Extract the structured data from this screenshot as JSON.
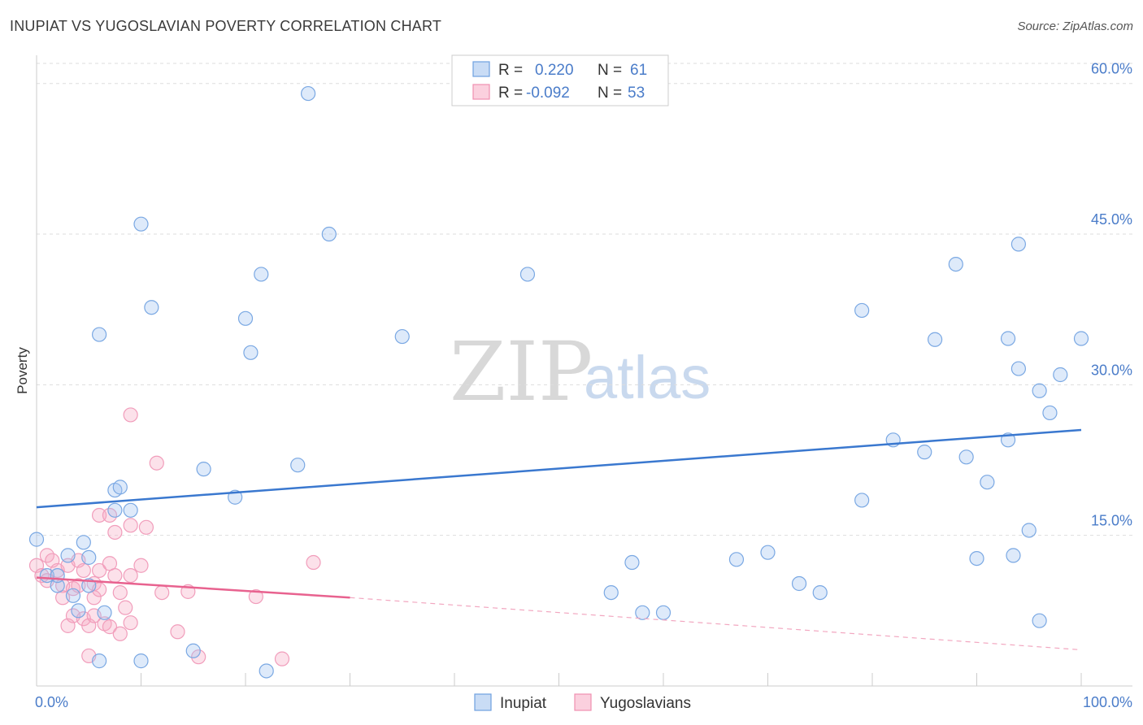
{
  "header": {
    "title": "INUPIAT VS YUGOSLAVIAN POVERTY CORRELATION CHART",
    "source": "Source: ZipAtlas.com"
  },
  "watermark": {
    "zip": "ZIP",
    "atlas": "atlas"
  },
  "legend": {
    "rows": [
      {
        "r_label": "R =",
        "r_value": "0.220",
        "n_label": "N =",
        "n_value": "61",
        "color": "#6fa0e0"
      },
      {
        "r_label": "R =",
        "r_value": "-0.092",
        "n_label": "N =",
        "n_value": "53",
        "color": "#f08fb0"
      }
    ]
  },
  "bottom_legend": {
    "series1": "Inupiat",
    "series2": "Yugoslavians"
  },
  "chart_data": {
    "type": "scatter",
    "title": "INUPIAT VS YUGOSLAVIAN POVERTY CORRELATION CHART",
    "xlabel": "",
    "ylabel": "Poverty",
    "xlim": [
      0,
      100
    ],
    "ylim": [
      0,
      62
    ],
    "x_tick_labels": [
      "0.0%",
      "100.0%"
    ],
    "y_ticks": [
      15,
      30,
      45,
      60
    ],
    "y_tick_labels": [
      "15.0%",
      "30.0%",
      "45.0%",
      "60.0%"
    ],
    "colors": {
      "inupiat": "#3a78cf",
      "yugoslavians": "#e8628f"
    },
    "series": [
      {
        "name": "Inupiat",
        "trend": {
          "x0": 0,
          "y0": 17.8,
          "x1": 100,
          "y1": 25.5
        },
        "points": [
          [
            0,
            14.6
          ],
          [
            1,
            11
          ],
          [
            2,
            10
          ],
          [
            2,
            11
          ],
          [
            3,
            13
          ],
          [
            3.5,
            9
          ],
          [
            4,
            7.5
          ],
          [
            4.5,
            14.3
          ],
          [
            5,
            12.8
          ],
          [
            5,
            10
          ],
          [
            6,
            35
          ],
          [
            6,
            2.5
          ],
          [
            6.5,
            7.3
          ],
          [
            7.5,
            17.5
          ],
          [
            7.5,
            19.5
          ],
          [
            8,
            19.8
          ],
          [
            9,
            17.5
          ],
          [
            10,
            46
          ],
          [
            10,
            2.5
          ],
          [
            11,
            37.7
          ],
          [
            15,
            3.5
          ],
          [
            16,
            21.6
          ],
          [
            19,
            18.8
          ],
          [
            20,
            36.6
          ],
          [
            20.5,
            33.2
          ],
          [
            21.5,
            41
          ],
          [
            22,
            1.5
          ],
          [
            25,
            22
          ],
          [
            26,
            59
          ],
          [
            28,
            45
          ],
          [
            35,
            34.8
          ],
          [
            47,
            41
          ],
          [
            55,
            9.3
          ],
          [
            57,
            12.3
          ],
          [
            58,
            7.3
          ],
          [
            60,
            7.3
          ],
          [
            67,
            12.6
          ],
          [
            70,
            13.3
          ],
          [
            73,
            10.2
          ],
          [
            75,
            9.3
          ],
          [
            79,
            37.4
          ],
          [
            79,
            18.5
          ],
          [
            82,
            24.5
          ],
          [
            85,
            23.3
          ],
          [
            86,
            34.5
          ],
          [
            88,
            42
          ],
          [
            89,
            22.8
          ],
          [
            90,
            12.7
          ],
          [
            91,
            20.3
          ],
          [
            93,
            24.5
          ],
          [
            93,
            34.6
          ],
          [
            93.5,
            13
          ],
          [
            94,
            44
          ],
          [
            94,
            31.6
          ],
          [
            95,
            15.5
          ],
          [
            96,
            29.4
          ],
          [
            96,
            6.5
          ],
          [
            97,
            27.2
          ],
          [
            98,
            31
          ],
          [
            100,
            34.6
          ]
        ]
      },
      {
        "name": "Yugoslavians",
        "trend": {
          "x0": 0,
          "y0": 10.8,
          "x1": 30,
          "y1": 8.8
        },
        "trend_extended": {
          "x0": 30,
          "y0": 8.8,
          "x1": 100,
          "y1": 3.6
        },
        "points": [
          [
            0,
            12
          ],
          [
            0.5,
            11
          ],
          [
            1,
            13
          ],
          [
            1,
            10.5
          ],
          [
            1.5,
            12.5
          ],
          [
            2,
            11.5
          ],
          [
            2.5,
            10
          ],
          [
            2.5,
            8.8
          ],
          [
            3,
            6
          ],
          [
            3,
            12
          ],
          [
            3.5,
            9.7
          ],
          [
            3.5,
            7
          ],
          [
            4,
            12.5
          ],
          [
            4,
            10
          ],
          [
            4.5,
            11.5
          ],
          [
            4.5,
            6.7
          ],
          [
            5,
            6
          ],
          [
            5,
            3
          ],
          [
            5.5,
            8.8
          ],
          [
            5.5,
            10.2
          ],
          [
            5.5,
            7
          ],
          [
            6,
            17
          ],
          [
            6,
            9.6
          ],
          [
            6,
            11.5
          ],
          [
            6.5,
            6.2
          ],
          [
            7,
            5.9
          ],
          [
            7,
            12.2
          ],
          [
            7,
            17
          ],
          [
            7.5,
            15.3
          ],
          [
            7.5,
            11
          ],
          [
            8,
            9.3
          ],
          [
            8,
            5.2
          ],
          [
            8.5,
            7.8
          ],
          [
            9,
            11
          ],
          [
            9,
            6.3
          ],
          [
            9,
            27
          ],
          [
            9,
            16
          ],
          [
            10,
            12
          ],
          [
            10.5,
            15.8
          ],
          [
            11.5,
            22.2
          ],
          [
            12,
            9.3
          ],
          [
            13.5,
            5.4
          ],
          [
            14.5,
            9.4
          ],
          [
            15.5,
            2.9
          ],
          [
            21,
            8.9
          ],
          [
            23.5,
            2.7
          ],
          [
            26.5,
            12.3
          ]
        ]
      }
    ]
  }
}
